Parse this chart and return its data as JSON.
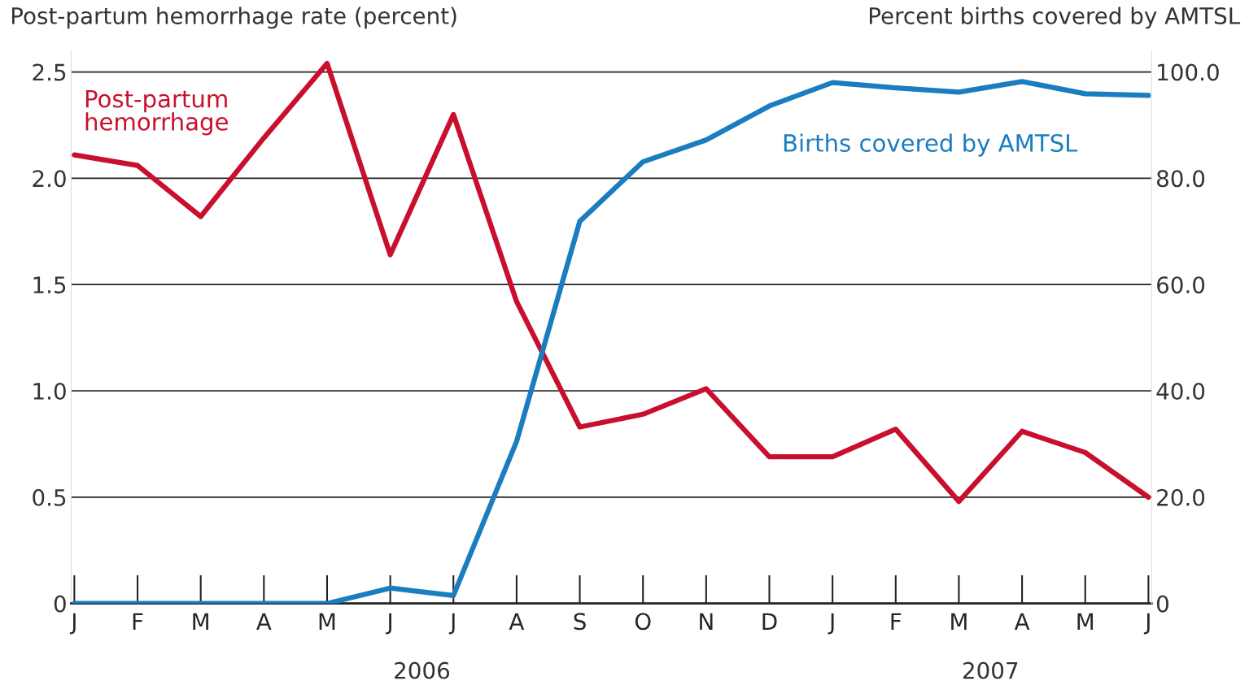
{
  "chart_data": {
    "type": "line",
    "ylabel": "Post-partum hemorrhage rate (percent)",
    "y2label": "Percent births covered by AMTSL",
    "categories": [
      "J",
      "F",
      "M",
      "A",
      "M",
      "J",
      "J",
      "A",
      "S",
      "O",
      "N",
      "D",
      "J",
      "F",
      "M",
      "A",
      "M",
      "J"
    ],
    "series": [
      {
        "name": "Post-partum\nhemorrhage",
        "color": "#c8102e",
        "values": [
          2.11,
          2.06,
          1.82,
          2.19,
          2.54,
          1.64,
          2.3,
          1.42,
          0.83,
          0.89,
          1.01,
          0.69,
          0.69,
          0.82,
          0.48,
          0.81,
          0.71,
          0.5
        ]
      },
      {
        "name": "Births covered by AMTSL",
        "color": "#1a7dc0",
        "axis": "y2",
        "values": [
          0,
          0,
          0,
          0,
          0,
          2.9,
          1.5,
          30.5,
          71.9,
          83.1,
          87.2,
          93.6,
          98.0,
          97.0,
          96.2,
          98.2,
          95.9,
          95.6
        ]
      }
    ],
    "ylim": [
      0,
      2.6
    ],
    "yticks": [
      0,
      0.5,
      {
        "value": 1,
        "label": "1.0"
      },
      1.5,
      {
        "value": 2,
        "label": "2.0"
      },
      2.5
    ],
    "y2lim": [
      0,
      104
    ],
    "y2ticks": [
      0,
      {
        "value": 20,
        "label": "20.0"
      },
      {
        "value": 40,
        "label": "40.0"
      },
      {
        "value": 60,
        "label": "60.0"
      },
      {
        "value": 80,
        "label": "80.0"
      },
      {
        "value": 100,
        "label": "100.0"
      }
    ],
    "grid": "y",
    "legend": false,
    "annotations": [
      "2006",
      "2007"
    ]
  }
}
